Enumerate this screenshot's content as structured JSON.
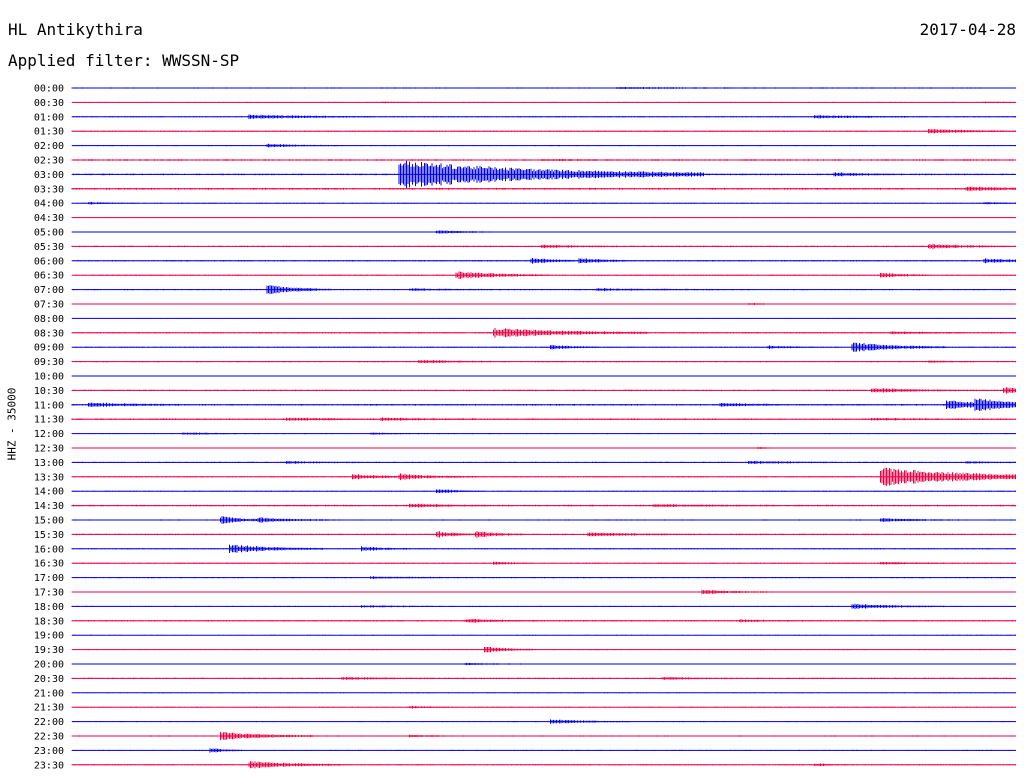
{
  "header": {
    "station": "HL Antikythira",
    "date": "2017-04-28",
    "filter": "Applied filter: WWSSN-SP"
  },
  "colors": {
    "blue": "#0000ee",
    "red": "#ee0044"
  },
  "chart_data": {
    "type": "line",
    "title": "HL Antikythira",
    "ylabel": "HHZ - 35000",
    "traces": [
      {
        "label": "00:00",
        "color": "blue",
        "noise": 0.6,
        "events": [
          [
            0.58,
            9,
            0.7
          ]
        ]
      },
      {
        "label": "00:30",
        "color": "red",
        "noise": 0.5,
        "events": [
          [
            0.33,
            3,
            0.4
          ],
          [
            0.97,
            3,
            0.4
          ]
        ]
      },
      {
        "label": "01:00",
        "color": "blue",
        "noise": 0.6,
        "events": [
          [
            0.19,
            8,
            2.0
          ],
          [
            0.79,
            6,
            1.5
          ]
        ]
      },
      {
        "label": "01:30",
        "color": "red",
        "noise": 0.6,
        "events": [
          [
            0.91,
            7,
            1.8
          ]
        ]
      },
      {
        "label": "02:00",
        "color": "blue",
        "noise": 0.5,
        "events": [
          [
            0.21,
            5,
            1.4
          ]
        ]
      },
      {
        "label": "02:30",
        "color": "red",
        "noise": 0.8,
        "events": [
          [
            0.5,
            4,
            0.6
          ]
        ]
      },
      {
        "label": "03:00",
        "color": "blue",
        "noise": 0.8,
        "events": [
          [
            0.35,
            20,
            14.0
          ],
          [
            0.81,
            4,
            1.6
          ]
        ]
      },
      {
        "label": "03:30",
        "color": "red",
        "noise": 0.9,
        "events": [
          [
            0.95,
            6,
            1.6
          ]
        ]
      },
      {
        "label": "04:00",
        "color": "blue",
        "noise": 0.5,
        "events": [
          [
            0.02,
            3,
            0.9
          ],
          [
            0.97,
            3,
            0.9
          ]
        ]
      },
      {
        "label": "04:30",
        "color": "red",
        "noise": 0.4,
        "events": []
      },
      {
        "label": "05:00",
        "color": "blue",
        "noise": 0.5,
        "events": [
          [
            0.39,
            4,
            1.5
          ]
        ]
      },
      {
        "label": "05:30",
        "color": "red",
        "noise": 0.7,
        "events": [
          [
            0.5,
            5,
            1.2
          ],
          [
            0.91,
            5,
            2.2
          ]
        ]
      },
      {
        "label": "06:00",
        "color": "blue",
        "noise": 0.7,
        "events": [
          [
            0.49,
            3,
            2.5
          ],
          [
            0.54,
            3,
            2.5
          ],
          [
            0.97,
            4,
            2.0
          ]
        ]
      },
      {
        "label": "06:30",
        "color": "red",
        "noise": 0.6,
        "events": [
          [
            0.41,
            6,
            3.5
          ],
          [
            0.86,
            3,
            2.0
          ]
        ]
      },
      {
        "label": "07:00",
        "color": "blue",
        "noise": 0.6,
        "events": [
          [
            0.21,
            4,
            4.5
          ],
          [
            0.36,
            5,
            1.0
          ],
          [
            0.56,
            8,
            1.0
          ]
        ]
      },
      {
        "label": "07:30",
        "color": "red",
        "noise": 0.4,
        "events": [
          [
            0.72,
            2,
            0.8
          ]
        ]
      },
      {
        "label": "08:00",
        "color": "blue",
        "noise": 0.4,
        "events": []
      },
      {
        "label": "08:30",
        "color": "red",
        "noise": 0.7,
        "events": [
          [
            0.45,
            10,
            4.5
          ],
          [
            0.87,
            5,
            1.0
          ]
        ]
      },
      {
        "label": "09:00",
        "color": "blue",
        "noise": 0.6,
        "events": [
          [
            0.51,
            3,
            2.0
          ],
          [
            0.74,
            3,
            1.2
          ],
          [
            0.83,
            6,
            4.5
          ]
        ]
      },
      {
        "label": "09:30",
        "color": "red",
        "noise": 0.6,
        "events": [
          [
            0.37,
            5,
            1.5
          ],
          [
            0.91,
            3,
            0.8
          ]
        ]
      },
      {
        "label": "10:00",
        "color": "blue",
        "noise": 0.4,
        "events": []
      },
      {
        "label": "10:30",
        "color": "red",
        "noise": 0.7,
        "events": [
          [
            0.85,
            6,
            2.0
          ],
          [
            0.99,
            4,
            2.5
          ]
        ]
      },
      {
        "label": "11:00",
        "color": "blue",
        "noise": 0.8,
        "events": [
          [
            0.02,
            6,
            2.0
          ],
          [
            0.69,
            4,
            1.5
          ],
          [
            0.93,
            6,
            4.0
          ],
          [
            0.96,
            6,
            4.5
          ]
        ]
      },
      {
        "label": "11:30",
        "color": "red",
        "noise": 0.8,
        "events": [
          [
            0.23,
            5,
            1.2
          ],
          [
            0.33,
            6,
            1.2
          ],
          [
            0.85,
            4,
            1.0
          ]
        ]
      },
      {
        "label": "12:00",
        "color": "blue",
        "noise": 0.5,
        "events": [
          [
            0.12,
            5,
            1.0
          ],
          [
            0.32,
            3,
            0.8
          ]
        ]
      },
      {
        "label": "12:30",
        "color": "red",
        "noise": 0.4,
        "events": [
          [
            0.73,
            2,
            0.6
          ]
        ]
      },
      {
        "label": "13:00",
        "color": "blue",
        "noise": 0.6,
        "events": [
          [
            0.23,
            5,
            1.0
          ],
          [
            0.72,
            6,
            1.2
          ],
          [
            0.95,
            4,
            0.8
          ]
        ]
      },
      {
        "label": "13:30",
        "color": "red",
        "noise": 0.6,
        "events": [
          [
            0.3,
            4,
            2.5
          ],
          [
            0.35,
            5,
            2.5
          ],
          [
            0.86,
            14,
            9.0
          ]
        ]
      },
      {
        "label": "14:00",
        "color": "blue",
        "noise": 0.5,
        "events": [
          [
            0.39,
            3,
            2.0
          ]
        ]
      },
      {
        "label": "14:30",
        "color": "red",
        "noise": 0.8,
        "events": [
          [
            0.36,
            5,
            1.8
          ],
          [
            0.62,
            8,
            1.0
          ]
        ]
      },
      {
        "label": "15:00",
        "color": "blue",
        "noise": 0.6,
        "events": [
          [
            0.16,
            3,
            3.5
          ],
          [
            0.2,
            5,
            2.0
          ],
          [
            0.86,
            5,
            1.5
          ]
        ]
      },
      {
        "label": "15:30",
        "color": "red",
        "noise": 0.7,
        "events": [
          [
            0.39,
            3,
            2.5
          ],
          [
            0.43,
            3,
            2.5
          ],
          [
            0.55,
            7,
            1.5
          ]
        ]
      },
      {
        "label": "16:00",
        "color": "blue",
        "noise": 0.6,
        "events": [
          [
            0.17,
            6,
            4.0
          ],
          [
            0.31,
            3,
            2.0
          ]
        ]
      },
      {
        "label": "16:30",
        "color": "red",
        "noise": 0.6,
        "events": [
          [
            0.45,
            2,
            1.2
          ],
          [
            0.86,
            4,
            1.0
          ]
        ]
      },
      {
        "label": "17:00",
        "color": "blue",
        "noise": 0.6,
        "events": [
          [
            0.32,
            5,
            1.0
          ]
        ]
      },
      {
        "label": "17:30",
        "color": "red",
        "noise": 0.4,
        "events": [
          [
            0.67,
            5,
            2.0
          ]
        ]
      },
      {
        "label": "18:00",
        "color": "blue",
        "noise": 0.5,
        "events": [
          [
            0.31,
            5,
            1.0
          ],
          [
            0.83,
            6,
            2.5
          ]
        ]
      },
      {
        "label": "18:30",
        "color": "red",
        "noise": 0.7,
        "events": [
          [
            0.42,
            5,
            1.5
          ],
          [
            0.71,
            4,
            1.0
          ]
        ]
      },
      {
        "label": "19:00",
        "color": "blue",
        "noise": 0.4,
        "events": []
      },
      {
        "label": "19:30",
        "color": "red",
        "noise": 0.5,
        "events": [
          [
            0.44,
            3,
            3.0
          ]
        ]
      },
      {
        "label": "20:00",
        "color": "blue",
        "noise": 0.5,
        "events": [
          [
            0.42,
            4,
            0.8
          ]
        ]
      },
      {
        "label": "20:30",
        "color": "red",
        "noise": 0.7,
        "events": [
          [
            0.29,
            6,
            1.0
          ],
          [
            0.63,
            4,
            1.0
          ]
        ]
      },
      {
        "label": "21:00",
        "color": "blue",
        "noise": 0.4,
        "events": []
      },
      {
        "label": "21:30",
        "color": "red",
        "noise": 0.5,
        "events": [
          [
            0.36,
            3,
            1.0
          ]
        ]
      },
      {
        "label": "22:00",
        "color": "blue",
        "noise": 0.5,
        "events": [
          [
            0.51,
            5,
            2.0
          ]
        ]
      },
      {
        "label": "22:30",
        "color": "red",
        "noise": 0.6,
        "events": [
          [
            0.16,
            6,
            4.0
          ],
          [
            0.36,
            3,
            1.0
          ]
        ]
      },
      {
        "label": "23:00",
        "color": "blue",
        "noise": 0.5,
        "events": [
          [
            0.15,
            2,
            2.0
          ]
        ]
      },
      {
        "label": "23:30",
        "color": "red",
        "noise": 0.6,
        "events": [
          [
            0.19,
            6,
            3.5
          ],
          [
            0.79,
            2,
            1.0
          ]
        ]
      }
    ]
  }
}
